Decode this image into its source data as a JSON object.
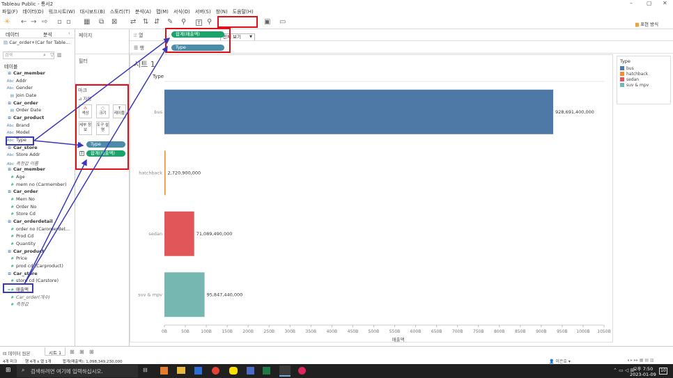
{
  "window": {
    "title": "Tableau Public - 통서2",
    "controls": [
      "–",
      "▢",
      "✕"
    ]
  },
  "menu": [
    "파일(F)",
    "데이터(D)",
    "워크시트(W)",
    "대시보드(B)",
    "스토리(T)",
    "분석(A)",
    "맵(M)",
    "서식(O)",
    "서버(S)",
    "창(N)",
    "도움말(H)"
  ],
  "toolbar": {
    "fit_select": "전체 보기",
    "show_me": "표현 방식"
  },
  "left_panel": {
    "tab_data": "데이터",
    "tab_analysis": "분석",
    "datasource": "Car_order+(Car for Table...",
    "search_placeholder": "검색",
    "tables_header": "테이블",
    "fields": [
      {
        "icon": "⊞",
        "label": "Car_member",
        "kind": "group"
      },
      {
        "icon": "Abc",
        "label": "Addr",
        "kind": "dim"
      },
      {
        "icon": "Abc",
        "label": "Gender",
        "kind": "dim"
      },
      {
        "icon": "▤",
        "label": "Join Date",
        "kind": "dim"
      },
      {
        "icon": "⊞",
        "label": "Car_order",
        "kind": "group"
      },
      {
        "icon": "▤",
        "label": "Order Date",
        "kind": "dim"
      },
      {
        "icon": "⊞",
        "label": "Car_product",
        "kind": "group"
      },
      {
        "icon": "Abc",
        "label": "Brand",
        "kind": "dim"
      },
      {
        "icon": "Abc",
        "label": "Model",
        "kind": "dim"
      },
      {
        "icon": "Abc",
        "label": "Type",
        "kind": "dim"
      },
      {
        "icon": "⊞",
        "label": "Car_store",
        "kind": "group"
      },
      {
        "icon": "Abc",
        "label": "Store Addr",
        "kind": "dim"
      },
      {
        "icon": "Abc",
        "label": "측정값 이름",
        "kind": "italic"
      },
      {
        "icon": "⊞",
        "label": "Car_member",
        "kind": "group"
      },
      {
        "icon": "#",
        "label": "Age",
        "kind": "meas"
      },
      {
        "icon": "#",
        "label": "mem no (Carmember)",
        "kind": "meas"
      },
      {
        "icon": "⊞",
        "label": "Car_order",
        "kind": "group"
      },
      {
        "icon": "#",
        "label": "Mem No",
        "kind": "meas"
      },
      {
        "icon": "#",
        "label": "Order No",
        "kind": "meas"
      },
      {
        "icon": "#",
        "label": "Store Cd",
        "kind": "meas"
      },
      {
        "icon": "⊞",
        "label": "Car_orderdetail",
        "kind": "group"
      },
      {
        "icon": "#",
        "label": "order no (Carorderdet...",
        "kind": "meas"
      },
      {
        "icon": "#",
        "label": "Prod Cd",
        "kind": "meas"
      },
      {
        "icon": "#",
        "label": "Quantity",
        "kind": "meas"
      },
      {
        "icon": "⊞",
        "label": "Car_product",
        "kind": "group"
      },
      {
        "icon": "#",
        "label": "Price",
        "kind": "meas"
      },
      {
        "icon": "#",
        "label": "prod cd (Carproduct)",
        "kind": "meas"
      },
      {
        "icon": "⊞",
        "label": "Car_store",
        "kind": "group"
      },
      {
        "icon": "#",
        "label": "store cd (Carstore)",
        "kind": "meas"
      },
      {
        "icon": "=#",
        "label": "매출액",
        "kind": "meas"
      },
      {
        "icon": "#",
        "label": "Car_order(개수)",
        "kind": "italic"
      },
      {
        "icon": "#",
        "label": "측정값",
        "kind": "italic"
      }
    ]
  },
  "pages_label": "페이지",
  "filters_label": "필터",
  "marks": {
    "label": "마크",
    "type": "자동",
    "buttons": [
      "색상",
      "크기",
      "레이블",
      "세부 정보",
      "도구 설명"
    ],
    "pill_type": "Type",
    "pill_sum": "합계(매출액)"
  },
  "shelves": {
    "columns_label": "열",
    "rows_label": "행",
    "columns_pill": "합계(매출액)",
    "rows_pill": "Type"
  },
  "sheet_title": "시트 1",
  "legend": {
    "title": "Type",
    "items": [
      {
        "label": "bus",
        "color": "#4e79a7"
      },
      {
        "label": "hatchback",
        "color": "#f28e2b"
      },
      {
        "label": "sedan",
        "color": "#e15759"
      },
      {
        "label": "suv & mpv",
        "color": "#76b7b2"
      }
    ]
  },
  "chart_data": {
    "type": "bar",
    "orientation": "horizontal",
    "ylabel": "Type",
    "xlabel": "매출액",
    "categories": [
      "bus",
      "hatchback",
      "sedan",
      "suv & mpv"
    ],
    "values": [
      928691400000,
      2720900000,
      71089490000,
      95847440000
    ],
    "value_labels": [
      "928,691,400,000",
      "2,720,900,000",
      "71,089,490,000",
      "95,847,440,000"
    ],
    "colors": [
      "#4e79a7",
      "#f28e2b",
      "#e15759",
      "#76b7b2"
    ],
    "xticks": [
      "0B",
      "50B",
      "100B",
      "150B",
      "200B",
      "250B",
      "300B",
      "350B",
      "400B",
      "450B",
      "500B",
      "550B",
      "600B",
      "650B",
      "700B",
      "750B",
      "800B",
      "850B",
      "900B",
      "950B",
      "1000B",
      "1050B"
    ],
    "xlim": [
      0,
      1050000000000
    ]
  },
  "status": {
    "tab_datasource": "데이터 원본",
    "tab_sheet": "시트 1",
    "marks_count": "4개 마크",
    "rows_cols": "행 4개 x 열 1개",
    "sum_text": "합계(매출액): 1,098,349,230,000",
    "user": "이은호"
  },
  "taskbar": {
    "search": "검색하려면 여기에 입력하십시오.",
    "time": "오후 7:50",
    "date": "2023-01-09",
    "badge": "10"
  }
}
